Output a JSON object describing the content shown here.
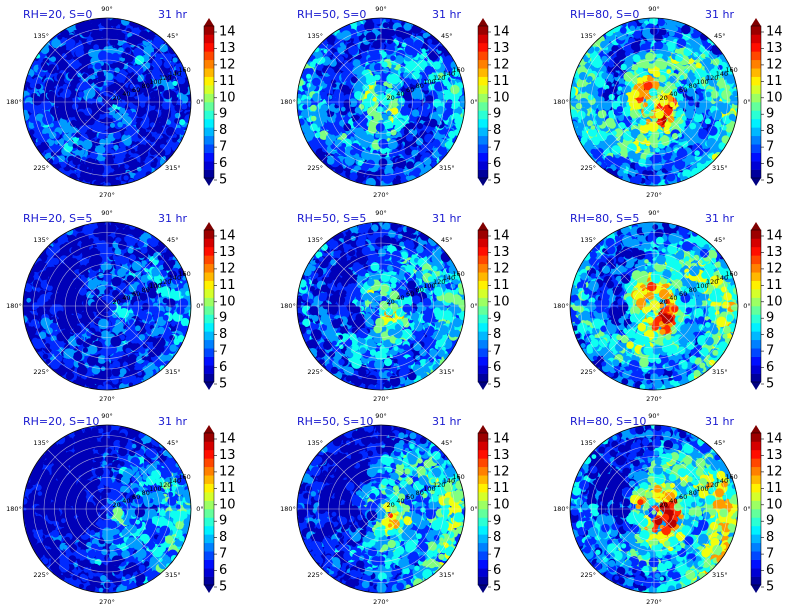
{
  "chart_data": {
    "type": "heatmap",
    "projection": "polar",
    "grid": true,
    "angular_ticks": [
      "0°",
      "45°",
      "90°",
      "135°",
      "180°",
      "225°",
      "270°",
      "315°"
    ],
    "radial_ticks": [
      "20",
      "40",
      "60",
      "80",
      "100",
      "120",
      "140",
      "160"
    ],
    "radial_range": [
      0,
      160
    ],
    "colorbar": {
      "ticks": [
        "5",
        "6",
        "7",
        "8",
        "9",
        "10",
        "11",
        "12",
        "13",
        "14"
      ],
      "range": [
        5,
        14
      ],
      "colormap": "jet",
      "extend": "both"
    },
    "panels": [
      {
        "label": "RH=20, S=0",
        "time": "31 hr",
        "rh": 20,
        "s": 0
      },
      {
        "label": "RH=50, S=0",
        "time": "31 hr",
        "rh": 50,
        "s": 0
      },
      {
        "label": "RH=80, S=0",
        "time": "31 hr",
        "rh": 80,
        "s": 0
      },
      {
        "label": "RH=20, S=5",
        "time": "31 hr",
        "rh": 20,
        "s": 5
      },
      {
        "label": "RH=50, S=5",
        "time": "31 hr",
        "rh": 50,
        "s": 5
      },
      {
        "label": "RH=80, S=5",
        "time": "31 hr",
        "rh": 80,
        "s": 5
      },
      {
        "label": "RH=20, S=10",
        "time": "31 hr",
        "rh": 20,
        "s": 10
      },
      {
        "label": "RH=50, S=10",
        "time": "31 hr",
        "rh": 50,
        "s": 10
      },
      {
        "label": "RH=80, S=10",
        "time": "31 hr",
        "rh": 80,
        "s": 10
      }
    ]
  }
}
